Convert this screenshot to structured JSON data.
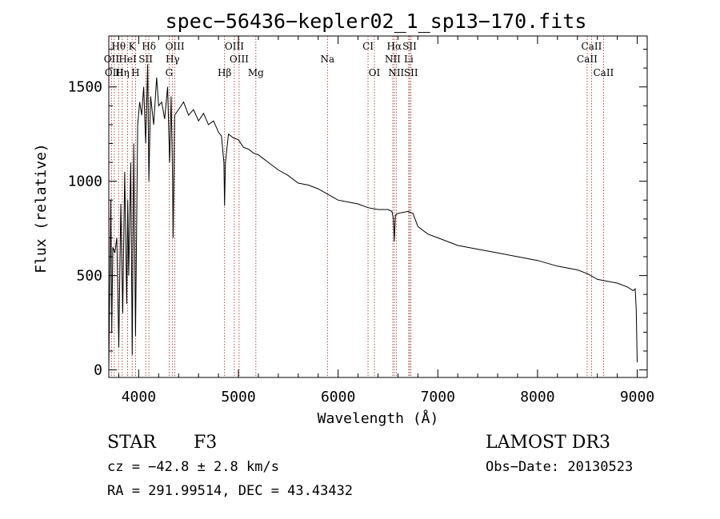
{
  "chart_data": {
    "type": "line",
    "title": "spec−56436−kepler02_1_sp13−170.fits",
    "xlabel": "Wavelength (Å)",
    "ylabel": "Flux (relative)",
    "xlim": [
      3700,
      9100
    ],
    "ylim": [
      -40,
      1770
    ],
    "xticks": [
      4000,
      5000,
      6000,
      7000,
      8000,
      9000
    ],
    "yticks": [
      0,
      500,
      1000,
      1500
    ],
    "series": [
      {
        "name": "spectrum",
        "x": [
          3700,
          3720,
          3730,
          3740,
          3760,
          3780,
          3800,
          3820,
          3840,
          3860,
          3880,
          3890,
          3900,
          3920,
          3935,
          3950,
          3968,
          3990,
          4010,
          4030,
          4050,
          4070,
          4090,
          4102,
          4120,
          4150,
          4180,
          4200,
          4230,
          4260,
          4290,
          4310,
          4325,
          4340,
          4345,
          4360,
          4400,
          4450,
          4500,
          4550,
          4600,
          4650,
          4700,
          4750,
          4800,
          4830,
          4855,
          4861,
          4870,
          4900,
          4950,
          5000,
          5050,
          5100,
          5150,
          5200,
          5250,
          5300,
          5400,
          5500,
          5600,
          5700,
          5800,
          5900,
          6000,
          6100,
          6200,
          6300,
          6400,
          6500,
          6540,
          6555,
          6563,
          6575,
          6600,
          6700,
          6750,
          6800,
          6900,
          7000,
          7100,
          7200,
          7400,
          7600,
          7800,
          8000,
          8200,
          8400,
          8500,
          8600,
          8700,
          8800,
          8900,
          8960,
          8980,
          8990,
          9000
        ],
        "y": [
          10,
          900,
          200,
          650,
          620,
          700,
          120,
          880,
          300,
          1050,
          350,
          900,
          500,
          1100,
          80,
          1200,
          180,
          1300,
          1420,
          1350,
          1500,
          1200,
          1620,
          1000,
          1450,
          1300,
          1550,
          1400,
          1420,
          1330,
          1500,
          1100,
          1450,
          1000,
          700,
          1350,
          1380,
          1420,
          1350,
          1380,
          1320,
          1360,
          1300,
          1320,
          1260,
          1240,
          1100,
          870,
          1100,
          1250,
          1230,
          1220,
          1180,
          1170,
          1150,
          1140,
          1120,
          1100,
          1060,
          1030,
          990,
          980,
          960,
          930,
          900,
          890,
          880,
          860,
          850,
          850,
          840,
          800,
          680,
          820,
          830,
          840,
          830,
          760,
          720,
          700,
          680,
          660,
          640,
          620,
          600,
          580,
          550,
          530,
          510,
          480,
          470,
          460,
          440,
          420,
          430,
          320,
          40
        ]
      }
    ],
    "lines": [
      {
        "name": "Hθ",
        "x": 3798,
        "pos": "top",
        "row": 1
      },
      {
        "name": "K",
        "x": 3934,
        "pos": "top",
        "row": 1
      },
      {
        "name": "Hδ",
        "x": 4102,
        "pos": "top",
        "row": 1
      },
      {
        "name": "OIII",
        "x": 4363,
        "pos": "top",
        "row": 1
      },
      {
        "name": "OIII",
        "x": 4959,
        "pos": "top",
        "row": 1
      },
      {
        "name": "CI",
        "x": 6300,
        "pos": "top",
        "row": 1
      },
      {
        "name": "Hα",
        "x": 6563,
        "pos": "top",
        "row": 1
      },
      {
        "name": "SII",
        "x": 6717,
        "pos": "top",
        "row": 1
      },
      {
        "name": "CaII",
        "x": 8542,
        "pos": "top",
        "row": 1
      },
      {
        "name": "OII",
        "x": 3727,
        "pos": "top",
        "row": 2
      },
      {
        "name": "HeI",
        "x": 3889,
        "pos": "top",
        "row": 2
      },
      {
        "name": "SII",
        "x": 4070,
        "pos": "top",
        "row": 2
      },
      {
        "name": "Hγ",
        "x": 4340,
        "pos": "top",
        "row": 2
      },
      {
        "name": "OIII",
        "x": 5007,
        "pos": "top",
        "row": 2
      },
      {
        "name": "Na",
        "x": 5893,
        "pos": "top",
        "row": 2
      },
      {
        "name": "NII",
        "x": 6548,
        "pos": "top",
        "row": 2
      },
      {
        "name": "Li",
        "x": 6708,
        "pos": "top",
        "row": 2
      },
      {
        "name": "CaII",
        "x": 8498,
        "pos": "top",
        "row": 2
      },
      {
        "name": "OIII",
        "x": 3755,
        "pos": "top",
        "row": 3
      },
      {
        "name": "Hη",
        "x": 3835,
        "pos": "top",
        "row": 3
      },
      {
        "name": "H",
        "x": 3968,
        "pos": "top",
        "row": 3
      },
      {
        "name": "G",
        "x": 4305,
        "pos": "top",
        "row": 3
      },
      {
        "name": "Hβ",
        "x": 4861,
        "pos": "top",
        "row": 3
      },
      {
        "name": "Mg",
        "x": 5175,
        "pos": "top",
        "row": 3
      },
      {
        "name": "OI",
        "x": 6364,
        "pos": "top",
        "row": 3
      },
      {
        "name": "NII",
        "x": 6583,
        "pos": "top",
        "row": 3
      },
      {
        "name": "SII",
        "x": 6731,
        "pos": "top",
        "row": 3
      },
      {
        "name": "CaII",
        "x": 8662,
        "pos": "top",
        "row": 3
      }
    ]
  },
  "footer": {
    "object_type": "STAR",
    "subclass": "F3",
    "cz": "cz = −42.8 ± 2.8 km/s",
    "radec": "RA = 291.99514, DEC =  43.43432",
    "survey": "LAMOST DR3",
    "obs_date": "Obs−Date: 20130523"
  }
}
